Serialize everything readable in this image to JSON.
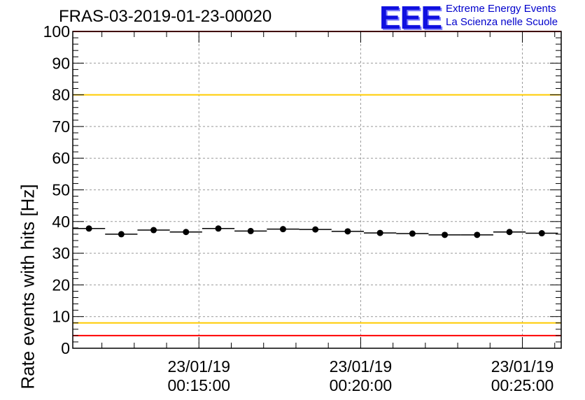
{
  "chart_data": {
    "type": "scatter",
    "title": "FRAS-03-2019-01-23-00020",
    "ylabel": "Rate events with hits [Hz]",
    "xlabel": "",
    "ylim": [
      0,
      100
    ],
    "xlim_minutes": [
      11.1,
      26.2
    ],
    "yticks": [
      0,
      10,
      20,
      30,
      40,
      50,
      60,
      70,
      80,
      90,
      100
    ],
    "xticks": [
      {
        "minute": 15,
        "date": "23/01/19",
        "time": "00:15:00"
      },
      {
        "minute": 20,
        "date": "23/01/19",
        "time": "00:20:00"
      },
      {
        "minute": 25,
        "date": "23/01/19",
        "time": "00:25:00"
      }
    ],
    "grid": true,
    "reference_lines": [
      {
        "y": 100,
        "color": "#ff0000"
      },
      {
        "y": 80,
        "color": "#ffcc00"
      },
      {
        "y": 8,
        "color": "#ffcc00"
      },
      {
        "y": 4,
        "color": "#ff0000"
      }
    ],
    "series": [
      {
        "x": [
          11.6,
          12.6,
          13.6,
          14.6,
          15.6,
          16.6,
          17.6,
          18.6,
          19.6,
          20.6,
          21.6,
          22.6,
          23.6,
          24.6,
          25.6
        ],
        "y": [
          37.8,
          36.0,
          37.3,
          36.7,
          37.8,
          37.0,
          37.6,
          37.5,
          36.9,
          36.4,
          36.2,
          35.8,
          35.8,
          36.7,
          36.3
        ],
        "xerr_minutes": 0.5,
        "color": "#000000"
      }
    ]
  },
  "logo": {
    "mark": "EEE",
    "line1": "Extreme Energy Events",
    "line2": "La Scienza nelle Scuole",
    "color": "#0000cc"
  }
}
